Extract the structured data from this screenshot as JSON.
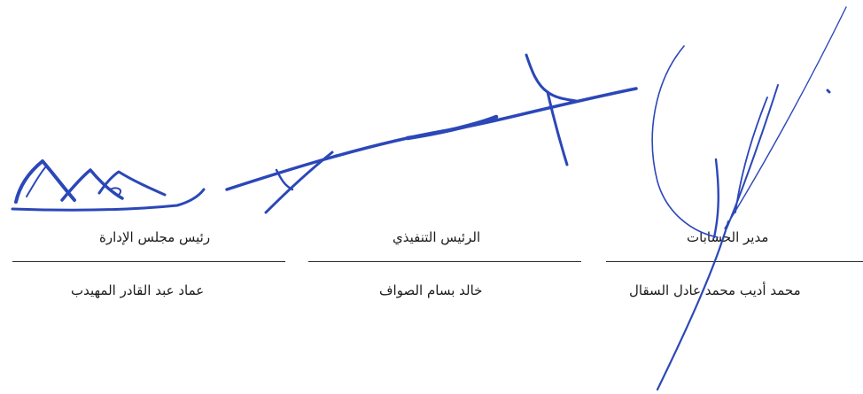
{
  "signatories": [
    {
      "title": "رئيس مجلس الإدارة",
      "name": "عماد عبد القادر المهيدب"
    },
    {
      "title": "الرئيس التنفيذي",
      "name": "خالد بسام الصواف"
    },
    {
      "title": "مدير الحسابات",
      "name": "محمد أديب محمد عادل السقال"
    }
  ],
  "ink_color": "#2b47b8"
}
